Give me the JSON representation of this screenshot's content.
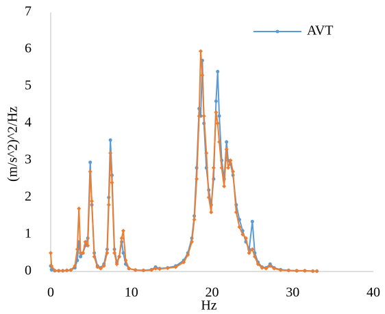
{
  "chart_data": {
    "type": "line",
    "x_label": "Hz",
    "y_label": "(m/s^2)^2/Hz",
    "x": [
      0,
      0.1,
      0.5,
      1,
      1.5,
      2,
      2.5,
      3,
      3.3,
      3.5,
      3.7,
      4,
      4.3,
      4.6,
      4.9,
      5.1,
      5.4,
      5.8,
      6.2,
      6.6,
      7,
      7.2,
      7.4,
      7.6,
      7.9,
      8.2,
      8.5,
      8.8,
      9,
      9.3,
      9.7,
      10.5,
      11.5,
      12.5,
      13,
      13.5,
      14.5,
      15.5,
      16.5,
      17,
      17.5,
      17.8,
      18.1,
      18.4,
      18.6,
      18.8,
      19,
      19.3,
      19.6,
      19.9,
      20.2,
      20.5,
      20.7,
      20.9,
      21.2,
      21.5,
      21.8,
      22,
      22.3,
      22.6,
      23,
      23.4,
      23.8,
      24.2,
      24.6,
      25,
      25.3,
      25.7,
      26.2,
      26.7,
      27.2,
      27.7,
      28.5,
      29.5,
      30.5,
      31.5,
      32.5,
      33
    ],
    "series": [
      {
        "name": "AVT",
        "color": "#5b9bd5",
        "marker": "circle",
        "values": [
          0.15,
          0.05,
          0.02,
          0.02,
          0.02,
          0.03,
          0.04,
          0.1,
          0.3,
          0.8,
          0.4,
          0.5,
          0.7,
          0.9,
          2.95,
          1.8,
          0.5,
          0.15,
          0.1,
          0.2,
          0.6,
          2.0,
          3.55,
          2.6,
          0.6,
          0.25,
          0.4,
          0.8,
          0.5,
          0.2,
          0.08,
          0.04,
          0.03,
          0.05,
          0.12,
          0.08,
          0.1,
          0.15,
          0.3,
          0.5,
          0.9,
          1.5,
          2.8,
          4.4,
          4.2,
          5.7,
          4.0,
          2.8,
          2.2,
          1.8,
          2.5,
          4.6,
          5.4,
          4.2,
          3.0,
          2.5,
          3.5,
          3.0,
          2.9,
          2.6,
          1.8,
          1.4,
          1.1,
          0.8,
          0.6,
          1.35,
          0.5,
          0.25,
          0.12,
          0.1,
          0.2,
          0.1,
          0.05,
          0.03,
          0.02,
          0.02,
          0.01,
          0.01
        ]
      },
      {
        "color": "#ed7d31",
        "marker": "diamond",
        "values": [
          0.5,
          0.15,
          0.03,
          0.02,
          0.02,
          0.03,
          0.04,
          0.15,
          0.6,
          1.7,
          0.5,
          0.5,
          0.8,
          0.7,
          2.7,
          1.9,
          0.4,
          0.12,
          0.08,
          0.15,
          0.5,
          1.8,
          3.2,
          2.4,
          0.5,
          0.2,
          0.4,
          0.9,
          1.1,
          0.3,
          0.08,
          0.04,
          0.03,
          0.04,
          0.08,
          0.07,
          0.09,
          0.12,
          0.25,
          0.45,
          0.8,
          1.4,
          2.5,
          4.2,
          5.95,
          5.3,
          4.2,
          3.2,
          2.0,
          1.6,
          2.8,
          4.3,
          4.0,
          3.5,
          2.8,
          2.3,
          3.3,
          2.8,
          3.0,
          2.7,
          1.6,
          1.2,
          1.0,
          0.9,
          0.5,
          0.6,
          0.4,
          0.2,
          0.1,
          0.08,
          0.15,
          0.08,
          0.04,
          0.03,
          0.02,
          0.02,
          0.01,
          0.01
        ]
      }
    ],
    "xlim": [
      0,
      40
    ],
    "xticks": [
      0,
      10,
      20,
      30,
      40
    ],
    "ylim": [
      0,
      7
    ],
    "yticks": [
      0,
      1,
      2,
      3,
      4,
      5,
      6,
      7
    ],
    "grid": false,
    "legend": "top-right"
  }
}
